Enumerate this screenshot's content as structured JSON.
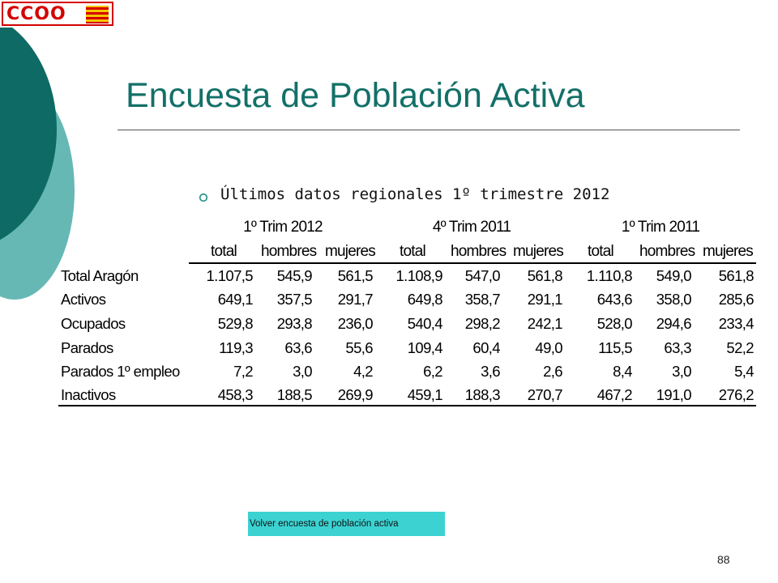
{
  "logo": {
    "text": "CCOO"
  },
  "slide": {
    "title": "Encuesta de Población Activa",
    "subtitle": "Últimos datos regionales 1º trimestre 2012",
    "page_number": "88",
    "link_label": "Volver encuesta de población  activa"
  },
  "table": {
    "groups": [
      "1º Trim 2012",
      "4º Trim 2011",
      "1º Trim 2011"
    ],
    "columns": [
      "total",
      "hombres",
      "mujeres",
      "total",
      "hombres",
      "mujeres",
      "total",
      "hombres",
      "mujeres"
    ],
    "rows": [
      {
        "label": "Total Aragón",
        "values": [
          "1.107,5",
          "545,9",
          "561,5",
          "1.108,9",
          "547,0",
          "561,8",
          "1.110,8",
          "549,0",
          "561,8"
        ]
      },
      {
        "label": "Activos",
        "values": [
          "649,1",
          "357,5",
          "291,7",
          "649,8",
          "358,7",
          "291,1",
          "643,6",
          "358,0",
          "285,6"
        ]
      },
      {
        "label": "Ocupados",
        "values": [
          "529,8",
          "293,8",
          "236,0",
          "540,4",
          "298,2",
          "242,1",
          "528,0",
          "294,6",
          "233,4"
        ]
      },
      {
        "label": "Parados",
        "values": [
          "119,3",
          "63,6",
          "55,6",
          "109,4",
          "60,4",
          "49,0",
          "115,5",
          "63,3",
          "52,2"
        ]
      },
      {
        "label": "Parados 1º empleo",
        "values": [
          "7,2",
          "3,0",
          "4,2",
          "6,2",
          "3,6",
          "2,6",
          "8,4",
          "3,0",
          "5,4"
        ]
      },
      {
        "label": "Inactivos",
        "values": [
          "458,3",
          "188,5",
          "269,9",
          "459,1",
          "188,3",
          "270,7",
          "467,2",
          "191,0",
          "276,2"
        ]
      }
    ]
  }
}
